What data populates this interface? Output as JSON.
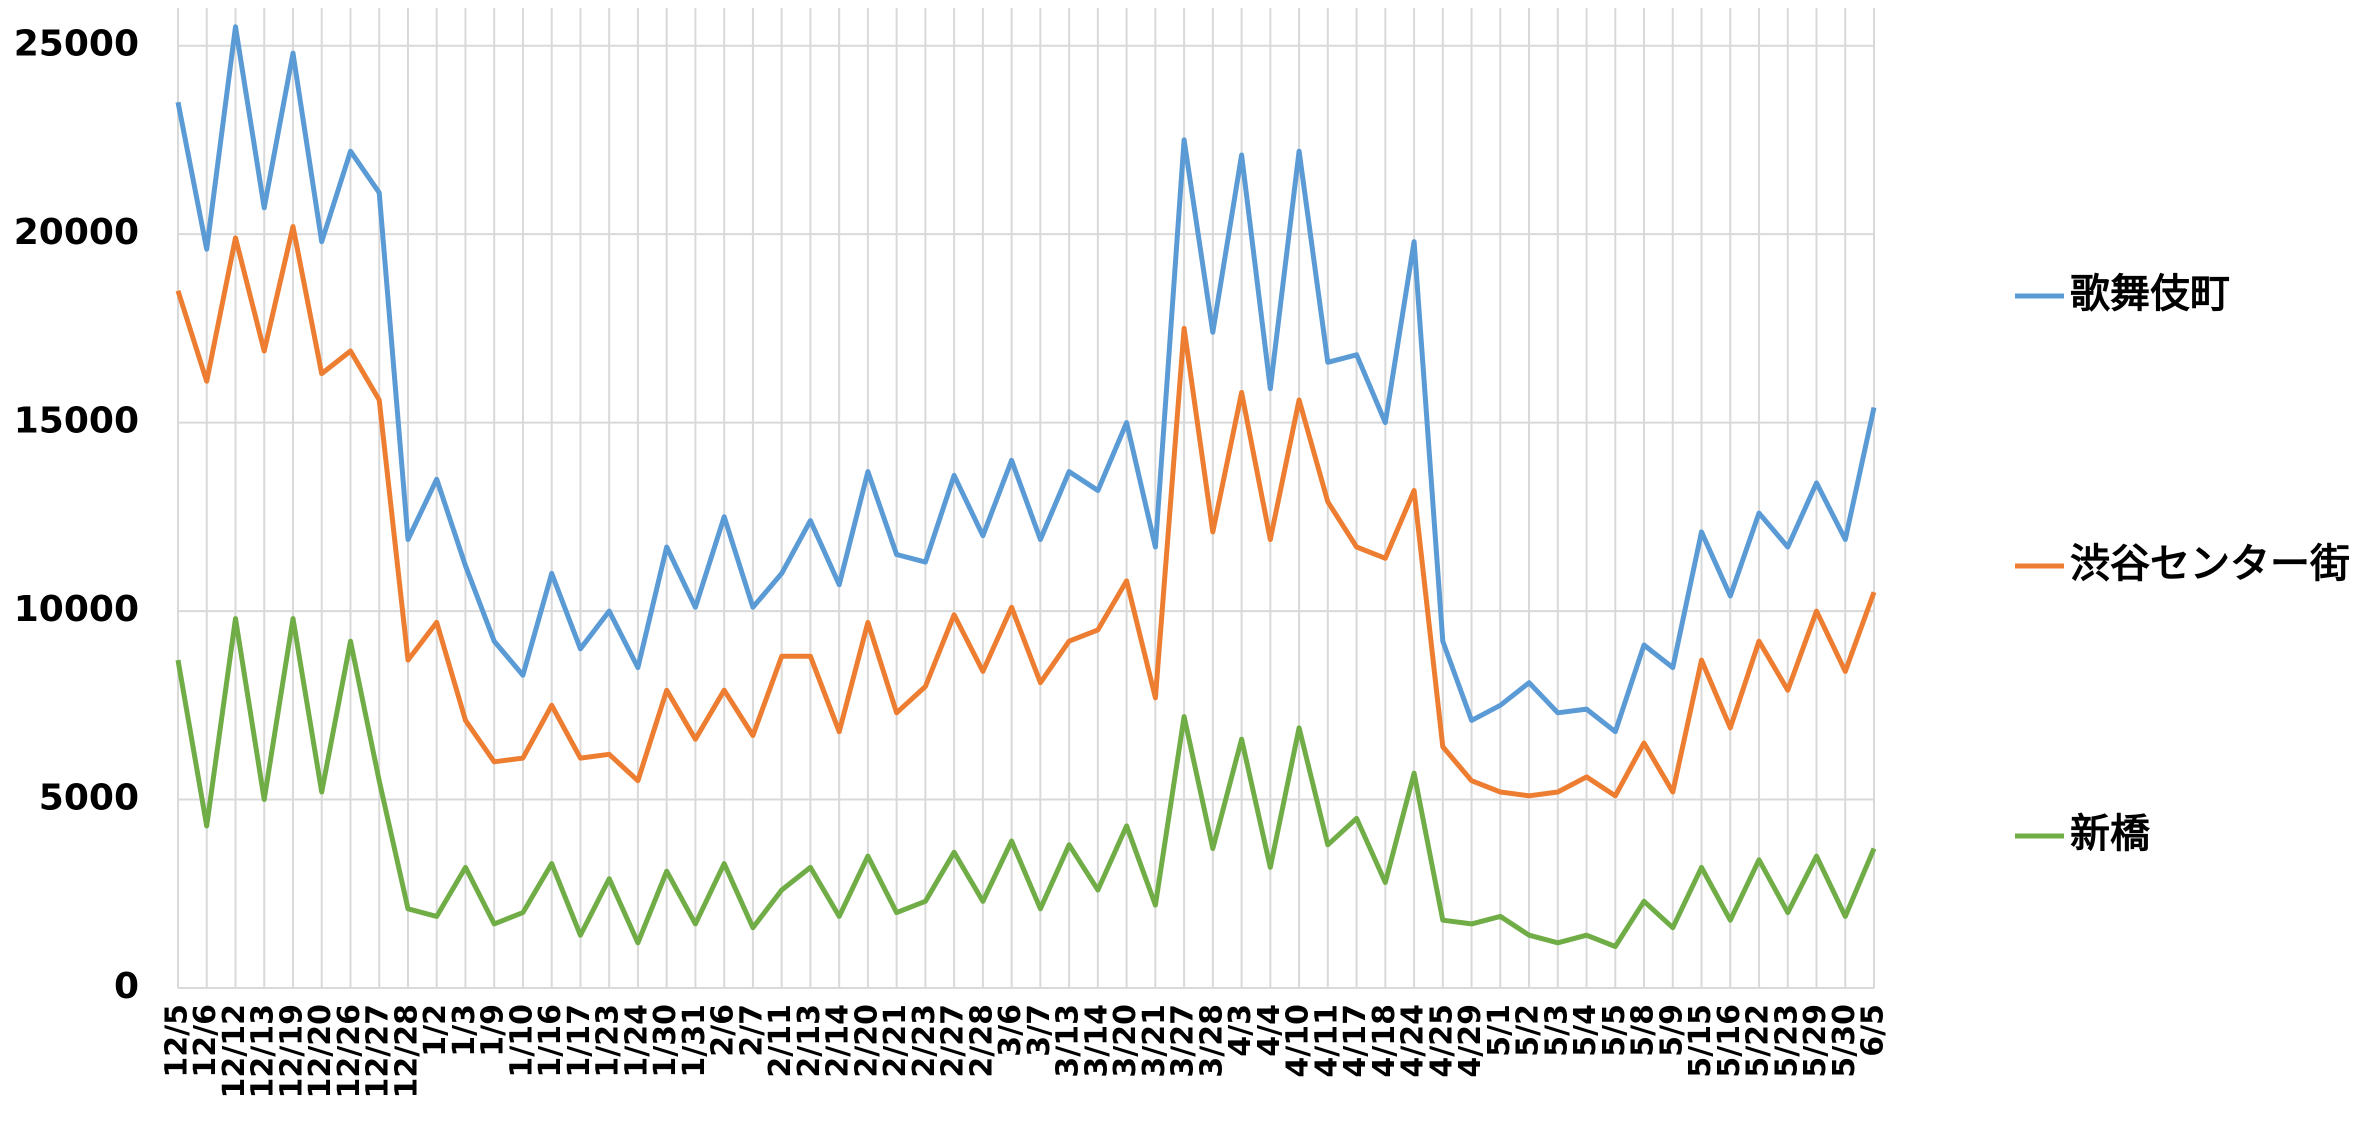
{
  "chart_data": {
    "type": "line",
    "categories": [
      "12/5",
      "12/6",
      "12/12",
      "12/13",
      "12/19",
      "12/20",
      "12/26",
      "12/27",
      "12/28",
      "1/2",
      "1/3",
      "1/9",
      "1/10",
      "1/16",
      "1/17",
      "1/23",
      "1/24",
      "1/30",
      "1/31",
      "2/6",
      "2/7",
      "2/11",
      "2/13",
      "2/14",
      "2/20",
      "2/21",
      "2/23",
      "2/27",
      "2/28",
      "3/6",
      "3/7",
      "3/13",
      "3/14",
      "3/20",
      "3/21",
      "3/27",
      "3/28",
      "4/3",
      "4/4",
      "4/10",
      "4/11",
      "4/17",
      "4/18",
      "4/24",
      "4/25",
      "4/29",
      "5/1",
      "5/2",
      "5/3",
      "5/4",
      "5/5",
      "5/8",
      "5/9",
      "5/15",
      "5/16",
      "5/22",
      "5/23",
      "5/29",
      "5/30",
      "6/5"
    ],
    "series": [
      {
        "name": "歌舞伎町",
        "color": "#5b9bd5",
        "values": [
          23500,
          19600,
          25500,
          20700,
          24800,
          19800,
          22200,
          21100,
          11900,
          13500,
          11200,
          9200,
          8300,
          11000,
          9000,
          10000,
          8500,
          11700,
          10100,
          12500,
          10100,
          11000,
          12400,
          10700,
          13700,
          11500,
          11300,
          13600,
          12000,
          14000,
          11900,
          13700,
          13200,
          15000,
          11700,
          22500,
          17400,
          22100,
          15900,
          22200,
          16600,
          16800,
          15000,
          19800,
          9200,
          7100,
          7500,
          8100,
          7300,
          7400,
          6800,
          9100,
          8500,
          12100,
          10400,
          12600,
          11700,
          13400,
          11900,
          15400
        ]
      },
      {
        "name": "渋谷センター街",
        "color": "#ed7d31",
        "values": [
          18500,
          16100,
          19900,
          16900,
          20200,
          16300,
          16900,
          15600,
          8700,
          9700,
          7100,
          6000,
          6100,
          7500,
          6100,
          6200,
          5500,
          7900,
          6600,
          7900,
          6700,
          8800,
          8800,
          6800,
          9700,
          7300,
          8000,
          9900,
          8400,
          10100,
          8100,
          9200,
          9500,
          10800,
          7700,
          17500,
          12100,
          15800,
          11900,
          15600,
          12900,
          11700,
          11400,
          13200,
          6400,
          5500,
          5200,
          5100,
          5200,
          5600,
          5100,
          6500,
          5200,
          8700,
          6900,
          9200,
          7900,
          10000,
          8400,
          10500
        ]
      },
      {
        "name": "新橋",
        "color": "#70ad47",
        "values": [
          8700,
          4300,
          9800,
          5000,
          9800,
          5200,
          9200,
          5500,
          2100,
          1900,
          3200,
          1700,
          2000,
          3300,
          1400,
          2900,
          1200,
          3100,
          1700,
          3300,
          1600,
          2600,
          3200,
          1900,
          3500,
          2000,
          2300,
          3600,
          2300,
          3900,
          2100,
          3800,
          2600,
          4300,
          2200,
          7200,
          3700,
          6600,
          3200,
          6900,
          3800,
          4500,
          2800,
          5700,
          1800,
          1700,
          1900,
          1400,
          1200,
          1400,
          1100,
          2300,
          1600,
          3200,
          1800,
          3400,
          2000,
          3500,
          1900,
          3700
        ]
      }
    ],
    "ylim": [
      0,
      26000
    ],
    "yticks": [
      0,
      5000,
      10000,
      15000,
      20000,
      25000
    ],
    "grid": true,
    "legend": "right"
  }
}
